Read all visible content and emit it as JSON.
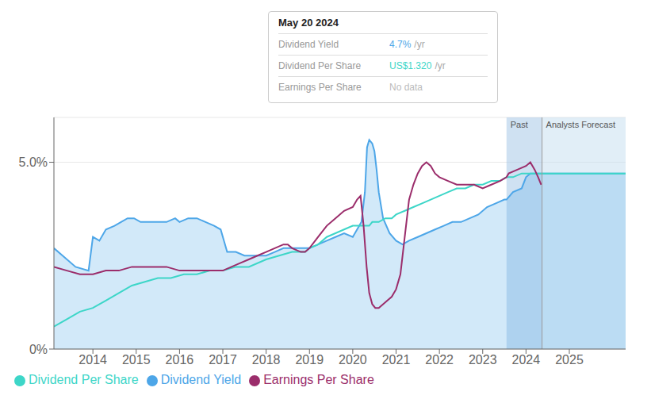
{
  "chart_data": {
    "type": "line",
    "xlim": [
      2013.1,
      2026.3
    ],
    "xticks": [
      2014,
      2015,
      2016,
      2017,
      2018,
      2019,
      2020,
      2021,
      2022,
      2023,
      2024,
      2025
    ],
    "ylim": [
      0,
      0.062
    ],
    "yticks": [
      {
        "value": 0,
        "label": "0%"
      },
      {
        "value": 0.05,
        "label": "5.0%"
      }
    ],
    "grid": "y",
    "legend": "bottom left",
    "regions": [
      {
        "label": "Past",
        "from": 2023.55,
        "to": 2024.37,
        "color": "#a8c8e8"
      },
      {
        "label": "Analysts Forecast",
        "from": 2024.37,
        "to": 2026.3,
        "color": "#c8e0f0"
      }
    ],
    "divider": {
      "x": 2024.37,
      "color": "#999999"
    },
    "tooltip": {
      "title": "May 20 2024",
      "rows": [
        {
          "label": "Dividend Yield",
          "value": "4.7%",
          "unit": "/yr",
          "color": "#4da6e8"
        },
        {
          "label": "Dividend Per Share",
          "value": "US$1.320",
          "unit": "/yr",
          "color": "#3dd6c8"
        },
        {
          "label": "Earnings Per Share",
          "value": "No data",
          "color": "#bbbbbb"
        }
      ]
    },
    "series": [
      {
        "name": "Dividend Yield",
        "type": "area",
        "color": "#4da6e8",
        "x": [
          2013.1,
          2013.3,
          2013.6,
          2013.9,
          2014.0,
          2014.15,
          2014.3,
          2014.5,
          2014.65,
          2014.8,
          2014.95,
          2015.1,
          2015.3,
          2015.5,
          2015.7,
          2015.9,
          2016.0,
          2016.2,
          2016.4,
          2016.6,
          2016.8,
          2016.95,
          2017.1,
          2017.3,
          2017.5,
          2017.7,
          2017.9,
          2018.0,
          2018.2,
          2018.4,
          2018.6,
          2018.8,
          2019.0,
          2019.2,
          2019.4,
          2019.6,
          2019.8,
          2020.0,
          2020.1,
          2020.2,
          2020.28,
          2020.33,
          2020.38,
          2020.45,
          2020.5,
          2020.55,
          2020.6,
          2020.7,
          2020.85,
          2021.0,
          2021.15,
          2021.3,
          2021.5,
          2021.7,
          2021.9,
          2022.1,
          2022.3,
          2022.5,
          2022.7,
          2022.9,
          2023.1,
          2023.3,
          2023.5,
          2023.55,
          2023.7,
          2023.9,
          2024.0,
          2024.1,
          2024.2,
          2024.37,
          2024.5,
          2024.8,
          2025.2,
          2025.6,
          2026.0,
          2026.3
        ],
        "values": [
          0.027,
          0.025,
          0.022,
          0.021,
          0.03,
          0.029,
          0.032,
          0.033,
          0.034,
          0.035,
          0.035,
          0.034,
          0.034,
          0.034,
          0.034,
          0.035,
          0.034,
          0.035,
          0.035,
          0.034,
          0.033,
          0.032,
          0.026,
          0.026,
          0.025,
          0.025,
          0.025,
          0.025,
          0.026,
          0.027,
          0.027,
          0.027,
          0.027,
          0.028,
          0.029,
          0.03,
          0.031,
          0.03,
          0.032,
          0.034,
          0.042,
          0.054,
          0.056,
          0.055,
          0.053,
          0.048,
          0.042,
          0.035,
          0.031,
          0.029,
          0.028,
          0.029,
          0.03,
          0.031,
          0.032,
          0.033,
          0.034,
          0.034,
          0.035,
          0.036,
          0.038,
          0.039,
          0.04,
          0.04,
          0.042,
          0.043,
          0.046,
          0.047,
          0.047,
          0.047,
          0.047,
          0.047,
          0.047,
          0.047,
          0.047,
          0.047
        ]
      },
      {
        "name": "Dividend Per Share",
        "type": "line",
        "color": "#3dd6c8",
        "x": [
          2013.1,
          2013.4,
          2013.7,
          2014.0,
          2014.3,
          2014.6,
          2014.9,
          2015.2,
          2015.5,
          2015.8,
          2016.1,
          2016.4,
          2016.7,
          2017.0,
          2017.3,
          2017.6,
          2018.0,
          2018.3,
          2018.6,
          2018.9,
          2019.0,
          2019.2,
          2019.4,
          2019.6,
          2019.8,
          2020.0,
          2020.1,
          2020.2,
          2020.3,
          2020.38,
          2020.45,
          2020.5,
          2020.6,
          2020.75,
          2020.9,
          2021.0,
          2021.2,
          2021.4,
          2021.6,
          2021.8,
          2022.0,
          2022.2,
          2022.4,
          2022.6,
          2022.8,
          2023.0,
          2023.2,
          2023.4,
          2023.55,
          2023.7,
          2023.9,
          2024.0,
          2024.37,
          2024.5,
          2024.8,
          2025.2,
          2025.6,
          2026.0,
          2026.3
        ],
        "values": [
          0.006,
          0.008,
          0.01,
          0.011,
          0.013,
          0.015,
          0.017,
          0.018,
          0.019,
          0.019,
          0.02,
          0.02,
          0.021,
          0.021,
          0.022,
          0.022,
          0.024,
          0.025,
          0.026,
          0.026,
          0.027,
          0.028,
          0.03,
          0.031,
          0.032,
          0.033,
          0.033,
          0.033,
          0.033,
          0.033,
          0.034,
          0.034,
          0.034,
          0.035,
          0.035,
          0.036,
          0.037,
          0.038,
          0.039,
          0.04,
          0.041,
          0.042,
          0.043,
          0.043,
          0.044,
          0.044,
          0.045,
          0.045,
          0.046,
          0.046,
          0.047,
          0.047,
          0.047,
          0.047,
          0.047,
          0.047,
          0.047,
          0.047,
          0.047
        ]
      },
      {
        "name": "Earnings Per Share",
        "type": "line",
        "color": "#9b2d6b",
        "x": [
          2013.1,
          2013.4,
          2013.7,
          2013.9,
          2014.0,
          2014.3,
          2014.6,
          2014.9,
          2015.1,
          2015.4,
          2015.7,
          2016.0,
          2016.3,
          2016.6,
          2016.9,
          2017.0,
          2017.2,
          2017.4,
          2017.6,
          2017.8,
          2018.0,
          2018.2,
          2018.4,
          2018.5,
          2018.6,
          2018.8,
          2018.9,
          2019.0,
          2019.2,
          2019.4,
          2019.6,
          2019.8,
          2020.0,
          2020.1,
          2020.18,
          2020.25,
          2020.32,
          2020.38,
          2020.45,
          2020.52,
          2020.6,
          2020.7,
          2020.8,
          2020.9,
          2021.0,
          2021.1,
          2021.2,
          2021.3,
          2021.4,
          2021.5,
          2021.6,
          2021.7,
          2021.8,
          2021.9,
          2022.0,
          2022.2,
          2022.4,
          2022.5,
          2022.6,
          2022.8,
          2023.0,
          2023.2,
          2023.4,
          2023.55,
          2023.6,
          2023.8,
          2024.0,
          2024.1,
          2024.15,
          2024.2,
          2024.28,
          2024.35
        ],
        "values": [
          0.022,
          0.021,
          0.02,
          0.02,
          0.02,
          0.021,
          0.021,
          0.022,
          0.022,
          0.022,
          0.022,
          0.021,
          0.021,
          0.021,
          0.021,
          0.021,
          0.022,
          0.023,
          0.024,
          0.025,
          0.026,
          0.027,
          0.028,
          0.028,
          0.027,
          0.026,
          0.026,
          0.027,
          0.03,
          0.033,
          0.035,
          0.037,
          0.038,
          0.04,
          0.041,
          0.033,
          0.022,
          0.015,
          0.012,
          0.011,
          0.011,
          0.012,
          0.013,
          0.014,
          0.016,
          0.02,
          0.03,
          0.04,
          0.044,
          0.047,
          0.049,
          0.05,
          0.049,
          0.047,
          0.046,
          0.045,
          0.044,
          0.044,
          0.044,
          0.044,
          0.043,
          0.044,
          0.045,
          0.046,
          0.047,
          0.048,
          0.049,
          0.05,
          0.049,
          0.048,
          0.046,
          0.044
        ]
      }
    ]
  }
}
